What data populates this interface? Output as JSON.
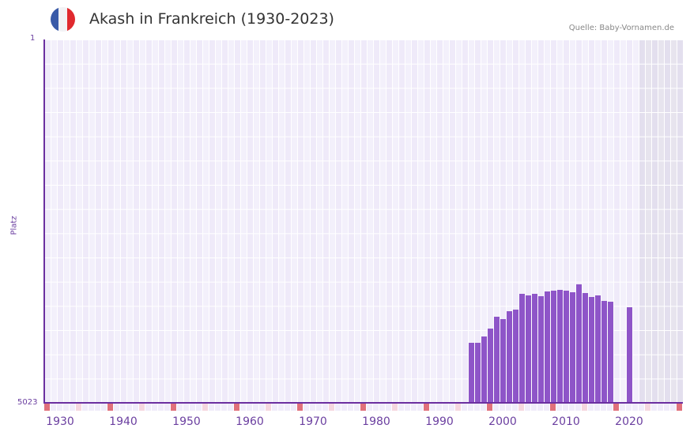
{
  "header": {
    "title": "Akash in Frankreich (1930-2023)",
    "source": "Quelle: Baby-Vornamen.de",
    "flag_colors": [
      "#3a5ba8",
      "#f2f2f5",
      "#e0292e"
    ]
  },
  "colors": {
    "bar": "#8e55c8",
    "axis": "#6b2fa0",
    "grid_a": "#efeaf9",
    "grid_b": "#f3f0fb",
    "future_a": "#e3dfee",
    "future_b": "#e7e4ee",
    "marker_decade": "#e0707b",
    "marker_half": "#f5d6df",
    "marker_default": "#f0ecfa"
  },
  "chart_data": {
    "type": "bar",
    "title": "Akash in Frankreich (1930-2023)",
    "xlabel": "",
    "ylabel": "Platz",
    "y_top_label": "1",
    "y_bottom_label": "5023",
    "ylim": [
      5023,
      1
    ],
    "y_inverted": true,
    "x_range": [
      1928,
      2028
    ],
    "x_ticks": [
      "1930",
      "1940",
      "1950",
      "1960",
      "1970",
      "1980",
      "1990",
      "2000",
      "2010",
      "2020"
    ],
    "shaded_from_year": 2022,
    "grid": true,
    "legend": null,
    "categories": [
      1995,
      1996,
      1997,
      1998,
      1999,
      2000,
      2001,
      2002,
      2003,
      2004,
      2005,
      2006,
      2007,
      2008,
      2009,
      2010,
      2011,
      2012,
      2013,
      2014,
      2015,
      2016,
      2017,
      2020
    ],
    "values": [
      4190,
      4190,
      4103,
      3994,
      3830,
      3863,
      3754,
      3732,
      3514,
      3536,
      3514,
      3547,
      3481,
      3470,
      3459,
      3470,
      3492,
      3383,
      3503,
      3558,
      3536,
      3612,
      3623,
      3699
    ],
    "series": [
      {
        "name": "Platz",
        "values": [
          4190,
          4190,
          4103,
          3994,
          3830,
          3863,
          3754,
          3732,
          3514,
          3536,
          3514,
          3547,
          3481,
          3470,
          3459,
          3470,
          3492,
          3383,
          3503,
          3558,
          3536,
          3612,
          3623,
          3699
        ]
      }
    ]
  }
}
